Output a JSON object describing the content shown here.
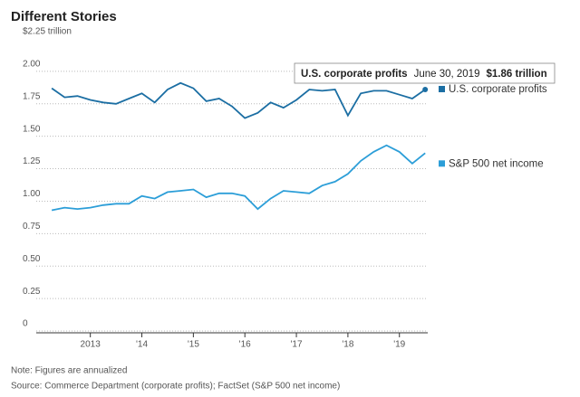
{
  "chart_data": {
    "type": "line",
    "title": "Different Stories",
    "x": [
      2012.25,
      2012.5,
      2012.75,
      2013,
      2013.25,
      2013.5,
      2013.75,
      2014,
      2014.25,
      2014.5,
      2014.75,
      2015,
      2015.25,
      2015.5,
      2015.75,
      2016,
      2016.25,
      2016.5,
      2016.75,
      2017,
      2017.25,
      2017.5,
      2017.75,
      2018,
      2018.25,
      2018.5,
      2018.75,
      2019,
      2019.25,
      2019.5
    ],
    "series": [
      {
        "name": "U.S. corporate profits",
        "color": "#1b6ea3",
        "values": [
          1.87,
          1.8,
          1.81,
          1.78,
          1.76,
          1.75,
          1.79,
          1.83,
          1.76,
          1.86,
          1.91,
          1.87,
          1.77,
          1.79,
          1.73,
          1.64,
          1.68,
          1.76,
          1.72,
          1.78,
          1.86,
          1.85,
          1.86,
          1.66,
          1.83,
          1.85,
          1.85,
          1.82,
          1.79,
          1.86
        ]
      },
      {
        "name": "S&P 500 net income",
        "color": "#2c9ed8",
        "values": [
          0.93,
          0.95,
          0.94,
          0.95,
          0.97,
          0.98,
          0.98,
          1.04,
          1.02,
          1.07,
          1.08,
          1.09,
          1.03,
          1.06,
          1.06,
          1.04,
          0.94,
          1.02,
          1.08,
          1.07,
          1.06,
          1.12,
          1.15,
          1.21,
          1.31,
          1.38,
          1.43,
          1.38,
          1.29,
          1.37
        ]
      }
    ],
    "xlim": [
      2011.95,
      2019.55
    ],
    "xticks": [
      {
        "value": 2013,
        "label": "2013"
      },
      {
        "value": 2014,
        "label": "'14"
      },
      {
        "value": 2015,
        "label": "'15"
      },
      {
        "value": 2016,
        "label": "'16"
      },
      {
        "value": 2017,
        "label": "'17"
      },
      {
        "value": 2018,
        "label": "'18"
      },
      {
        "value": 2019,
        "label": "'19"
      }
    ],
    "ylim": [
      0,
      2.25
    ],
    "yticks": [
      0,
      {
        "value": 0.25,
        "label": "0.25"
      },
      {
        "value": 0.5,
        "label": "0.50"
      },
      {
        "value": 0.75,
        "label": "0.75"
      },
      {
        "value": 1,
        "label": "1.00"
      },
      {
        "value": 1.25,
        "label": "1.25"
      },
      {
        "value": 1.5,
        "label": "1.50"
      },
      {
        "value": 1.75,
        "label": "1.75"
      },
      {
        "value": 2,
        "label": "2.00"
      },
      {
        "value": 2.25,
        "label": "$2.25 trillion"
      }
    ],
    "grid": true,
    "tooltip": {
      "series": "U.S. corporate profits",
      "date": "June 30, 2019",
      "value": "$1.86 trillion"
    },
    "note": "Note: Figures are annualized",
    "source": "Source: Commerce Department (corporate profits); FactSet (S&P 500 net income)"
  }
}
